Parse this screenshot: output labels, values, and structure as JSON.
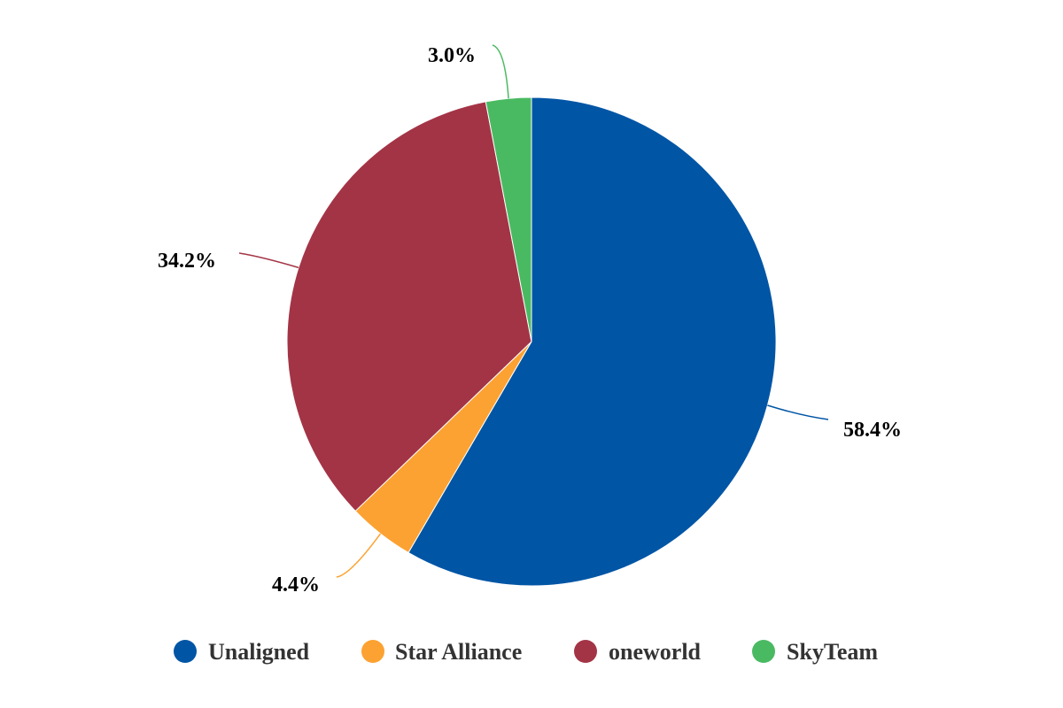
{
  "chart_data": {
    "type": "pie",
    "title": "",
    "start_angle_deg": 0,
    "direction": "clockwise",
    "slices": [
      {
        "name": "Unaligned",
        "value": 58.4,
        "label": "58.4%",
        "color": "#0055a5"
      },
      {
        "name": "Star Alliance",
        "value": 4.4,
        "label": "4.4%",
        "color": "#fca232"
      },
      {
        "name": "oneworld",
        "value": 34.2,
        "label": "34.2%",
        "color": "#a33446"
      },
      {
        "name": "SkyTeam",
        "value": 3.0,
        "label": "3.0%",
        "color": "#4aba62"
      }
    ],
    "legend": {
      "position": "bottom",
      "entries": [
        "Unaligned",
        "Star Alliance",
        "oneworld",
        "SkyTeam"
      ]
    }
  }
}
